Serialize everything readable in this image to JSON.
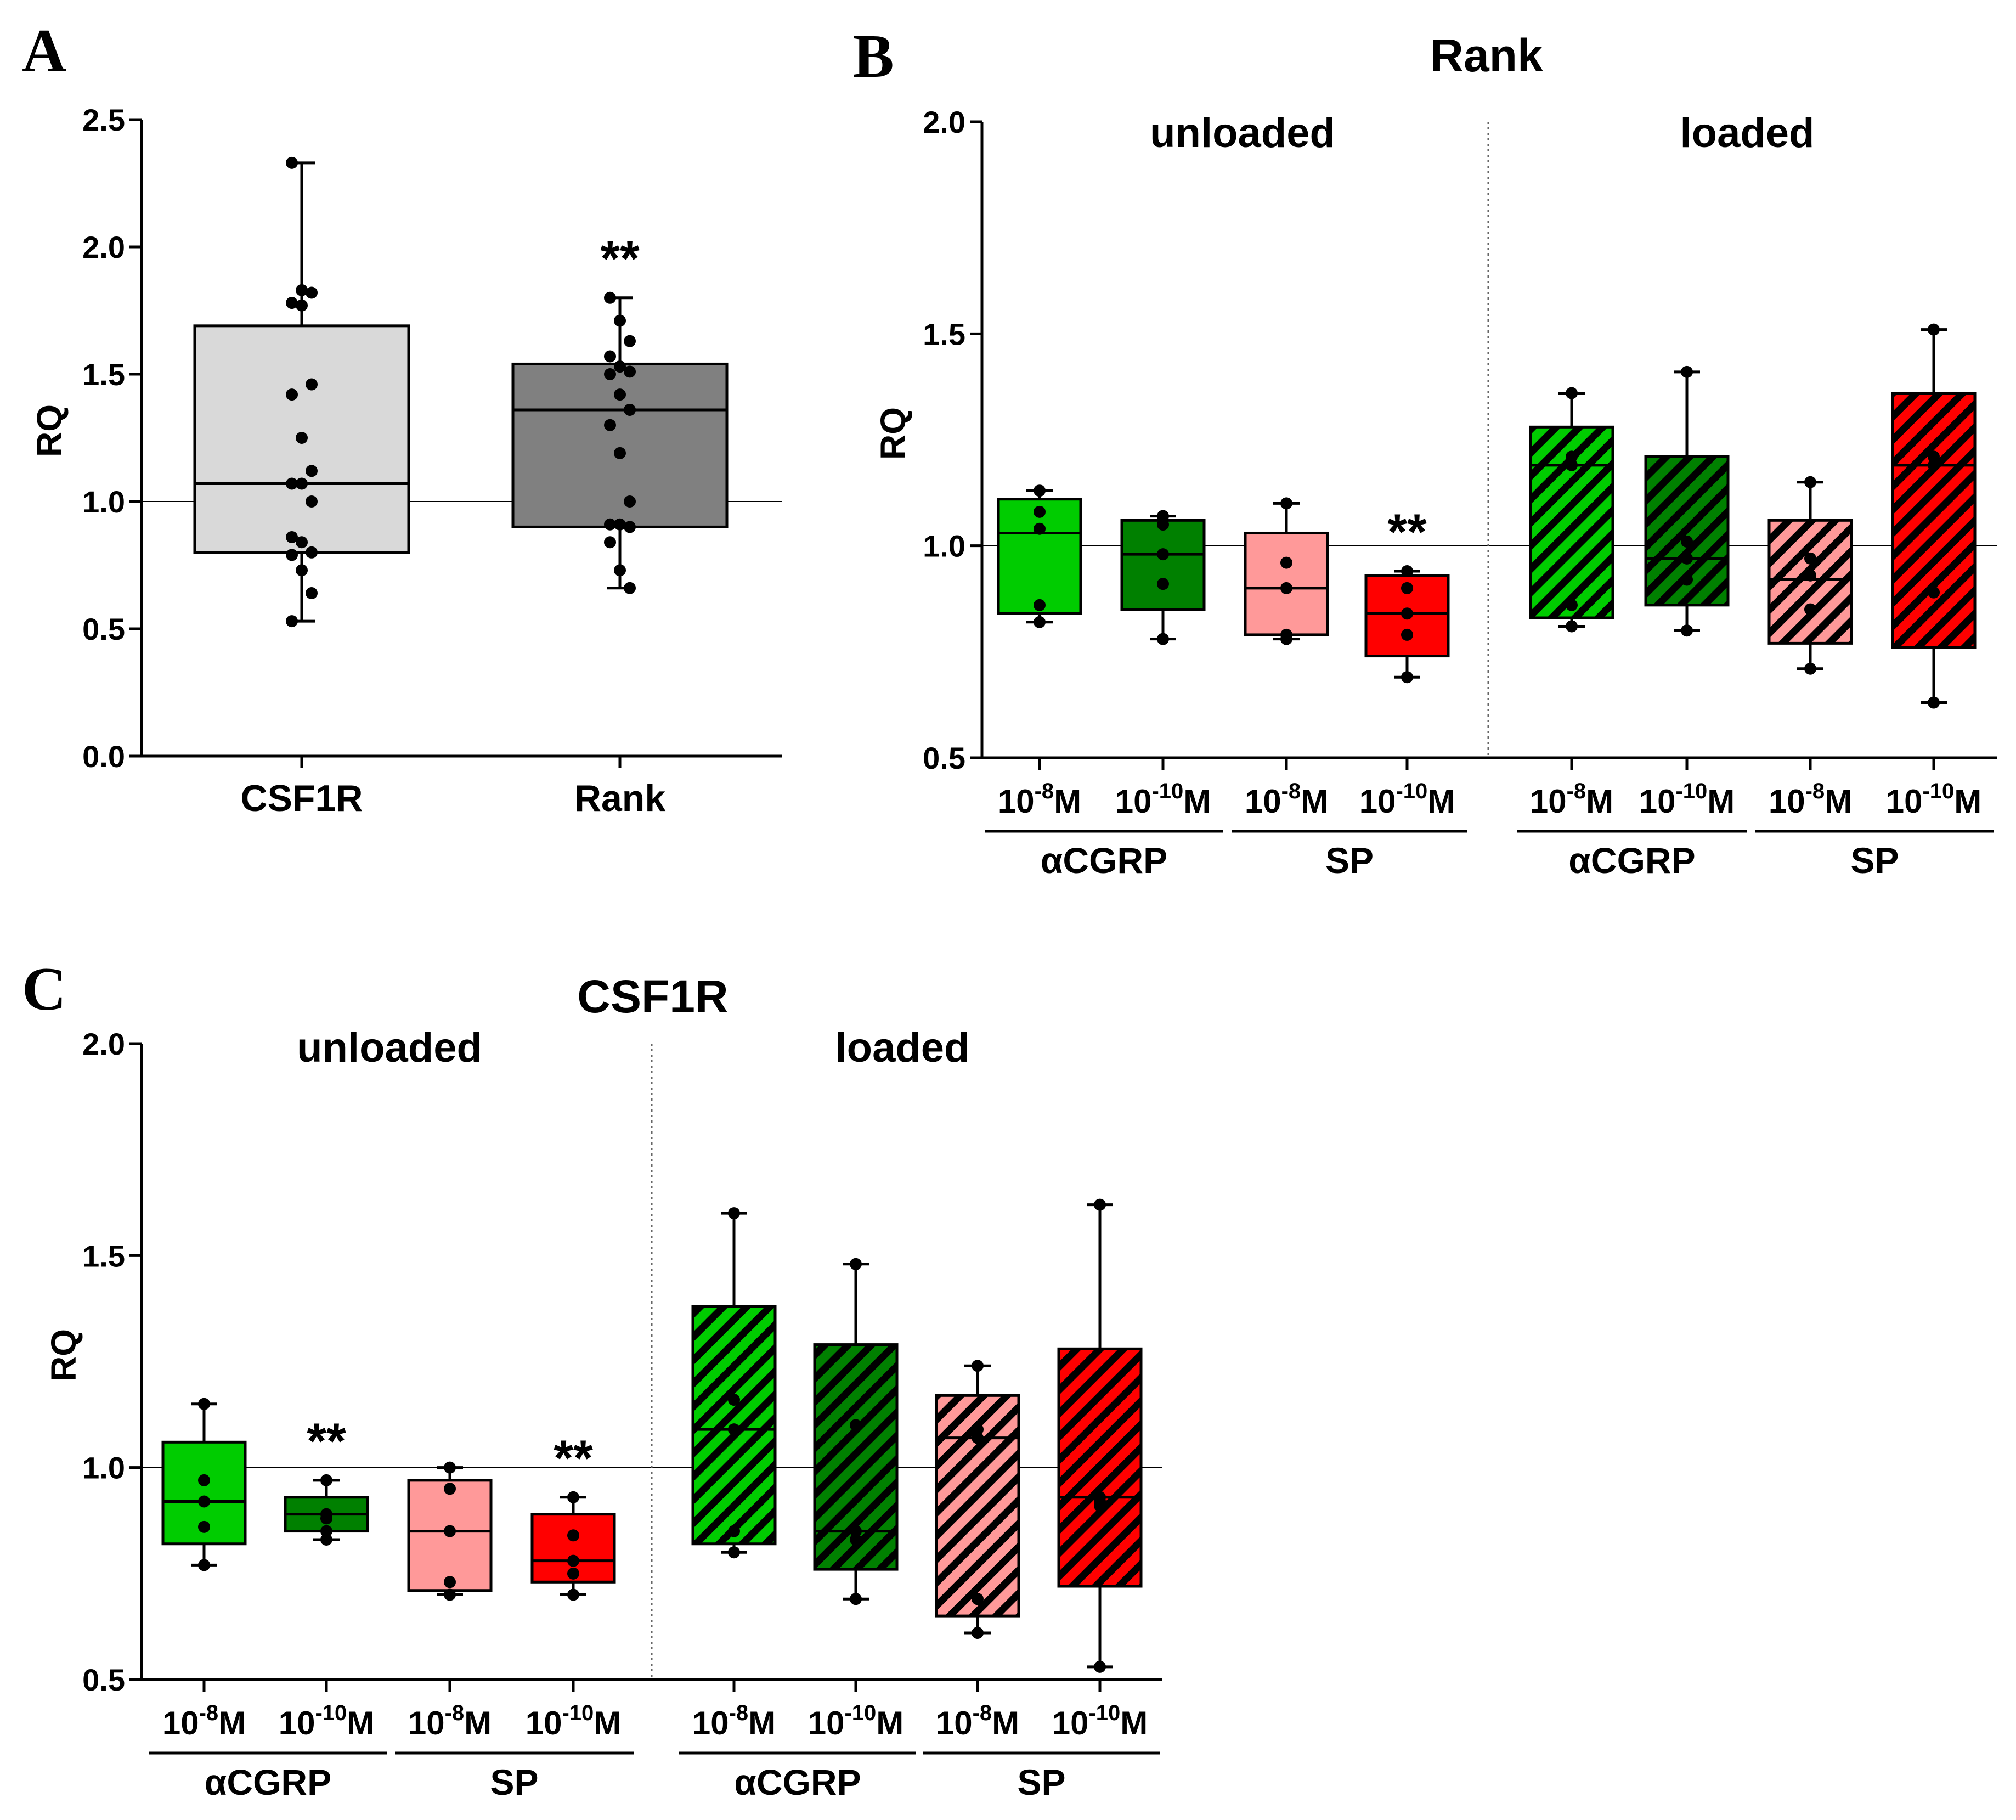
{
  "chart_data": [
    {
      "panel": "A",
      "type": "box",
      "title": "",
      "ylabel": "RQ",
      "ylim": [
        0.0,
        2.5
      ],
      "yticks": [
        "0.0",
        "0.5",
        "1.0",
        "1.5",
        "2.0",
        "2.5"
      ],
      "reference_line": 1.0,
      "categories": [
        "CSF1R",
        "Rank"
      ],
      "boxes": [
        {
          "name": "CSF1R",
          "color": "#d9d9d9",
          "min": 0.53,
          "q1": 0.8,
          "median": 1.07,
          "q3": 1.69,
          "max": 2.33,
          "points": [
            2.33,
            1.83,
            1.82,
            1.78,
            1.77,
            1.46,
            1.42,
            1.25,
            1.12,
            1.07,
            1.07,
            1.0,
            0.86,
            0.84,
            0.8,
            0.79,
            0.73,
            0.64,
            0.53
          ],
          "sig": ""
        },
        {
          "name": "Rank",
          "color": "#808080",
          "min": 0.66,
          "q1": 0.9,
          "median": 1.36,
          "q3": 1.54,
          "max": 1.8,
          "points": [
            1.8,
            1.71,
            1.63,
            1.57,
            1.53,
            1.51,
            1.5,
            1.42,
            1.36,
            1.3,
            1.19,
            1.0,
            0.91,
            0.91,
            0.9,
            0.84,
            0.73,
            0.66
          ],
          "sig": "**"
        }
      ]
    },
    {
      "panel": "B",
      "type": "box",
      "title": "Rank",
      "ylabel": "RQ",
      "ylim": [
        0.5,
        2.0
      ],
      "yticks": [
        "0.5",
        "1.0",
        "1.5",
        "2.0"
      ],
      "reference_line": 1.0,
      "conditions": [
        "unloaded",
        "loaded"
      ],
      "concentration_labels": [
        {
          "base": "10",
          "exp": "-8",
          "unit": "M"
        },
        {
          "base": "10",
          "exp": "-10",
          "unit": "M"
        }
      ],
      "groups": [
        "αCGRP",
        "SP",
        "αCGRP",
        "SP"
      ],
      "boxes": [
        {
          "cond": "unloaded",
          "group": "αCGRP",
          "conc": "10-8M",
          "color": "#00cc00",
          "hatched": false,
          "min": 0.82,
          "q1": 0.84,
          "median": 1.03,
          "q3": 1.11,
          "max": 1.13,
          "points": [
            1.13,
            1.08,
            1.04,
            0.86,
            0.82
          ],
          "sig": ""
        },
        {
          "cond": "unloaded",
          "group": "αCGRP",
          "conc": "10-10M",
          "color": "#008000",
          "hatched": false,
          "min": 0.78,
          "q1": 0.85,
          "median": 0.98,
          "q3": 1.06,
          "max": 1.07,
          "points": [
            1.07,
            1.05,
            0.98,
            0.91,
            0.78
          ],
          "sig": ""
        },
        {
          "cond": "unloaded",
          "group": "SP",
          "conc": "10-8M",
          "color": "#ff9999",
          "hatched": false,
          "min": 0.78,
          "q1": 0.79,
          "median": 0.9,
          "q3": 1.03,
          "max": 1.1,
          "points": [
            1.1,
            0.96,
            0.9,
            0.79,
            0.78
          ],
          "sig": ""
        },
        {
          "cond": "unloaded",
          "group": "SP",
          "conc": "10-10M",
          "color": "#ff0000",
          "hatched": false,
          "min": 0.69,
          "q1": 0.74,
          "median": 0.84,
          "q3": 0.93,
          "max": 0.94,
          "points": [
            0.94,
            0.9,
            0.84,
            0.79,
            0.69
          ],
          "sig": "**"
        },
        {
          "cond": "loaded",
          "group": "αCGRP",
          "conc": "10-8M",
          "color": "#00cc00",
          "hatched": true,
          "min": 0.81,
          "q1": 0.83,
          "median": 1.19,
          "q3": 1.28,
          "max": 1.36,
          "points": [
            1.36,
            1.21,
            1.19,
            0.86,
            0.81
          ],
          "sig": ""
        },
        {
          "cond": "loaded",
          "group": "αCGRP",
          "conc": "10-10M",
          "color": "#008000",
          "hatched": true,
          "min": 0.8,
          "q1": 0.86,
          "median": 0.97,
          "q3": 1.21,
          "max": 1.41,
          "points": [
            1.41,
            1.01,
            0.97,
            0.92,
            0.8
          ],
          "sig": ""
        },
        {
          "cond": "loaded",
          "group": "SP",
          "conc": "10-8M",
          "color": "#ff9999",
          "hatched": true,
          "min": 0.71,
          "q1": 0.77,
          "median": 0.92,
          "q3": 1.06,
          "max": 1.15,
          "points": [
            1.15,
            0.97,
            0.93,
            0.85,
            0.71
          ],
          "sig": ""
        },
        {
          "cond": "loaded",
          "group": "SP",
          "conc": "10-10M",
          "color": "#ff0000",
          "hatched": true,
          "min": 0.63,
          "q1": 0.76,
          "median": 1.19,
          "q3": 1.36,
          "max": 1.51,
          "points": [
            1.51,
            1.21,
            1.19,
            0.89,
            0.63
          ],
          "sig": ""
        }
      ]
    },
    {
      "panel": "C",
      "type": "box",
      "title": "CSF1R",
      "ylabel": "RQ",
      "ylim": [
        0.5,
        2.0
      ],
      "yticks": [
        "0.5",
        "1.0",
        "1.5",
        "2.0"
      ],
      "reference_line": 1.0,
      "conditions": [
        "unloaded",
        "loaded"
      ],
      "concentration_labels": [
        {
          "base": "10",
          "exp": "-8",
          "unit": "M"
        },
        {
          "base": "10",
          "exp": "-10",
          "unit": "M"
        }
      ],
      "groups": [
        "αCGRP",
        "SP",
        "αCGRP",
        "SP"
      ],
      "boxes": [
        {
          "cond": "unloaded",
          "group": "αCGRP",
          "conc": "10-8M",
          "color": "#00cc00",
          "hatched": false,
          "min": 0.77,
          "q1": 0.82,
          "median": 0.92,
          "q3": 1.06,
          "max": 1.15,
          "points": [
            1.15,
            0.97,
            0.92,
            0.86,
            0.77
          ],
          "sig": ""
        },
        {
          "cond": "unloaded",
          "group": "αCGRP",
          "conc": "10-10M",
          "color": "#008000",
          "hatched": false,
          "min": 0.83,
          "q1": 0.85,
          "median": 0.89,
          "q3": 0.93,
          "max": 0.97,
          "points": [
            0.97,
            0.89,
            0.88,
            0.85,
            0.83
          ],
          "sig": "**"
        },
        {
          "cond": "unloaded",
          "group": "SP",
          "conc": "10-8M",
          "color": "#ff9999",
          "hatched": false,
          "min": 0.7,
          "q1": 0.71,
          "median": 0.85,
          "q3": 0.97,
          "max": 1.0,
          "points": [
            1.0,
            0.95,
            0.85,
            0.73,
            0.7
          ],
          "sig": ""
        },
        {
          "cond": "unloaded",
          "group": "SP",
          "conc": "10-10M",
          "color": "#ff0000",
          "hatched": false,
          "min": 0.7,
          "q1": 0.73,
          "median": 0.78,
          "q3": 0.89,
          "max": 0.93,
          "points": [
            0.93,
            0.84,
            0.78,
            0.75,
            0.7
          ],
          "sig": "**"
        },
        {
          "cond": "loaded",
          "group": "αCGRP",
          "conc": "10-8M",
          "color": "#00cc00",
          "hatched": true,
          "min": 0.8,
          "q1": 0.82,
          "median": 1.09,
          "q3": 1.38,
          "max": 1.6,
          "points": [
            1.6,
            1.16,
            1.09,
            0.85,
            0.8
          ],
          "sig": ""
        },
        {
          "cond": "loaded",
          "group": "αCGRP",
          "conc": "10-10M",
          "color": "#008000",
          "hatched": true,
          "min": 0.69,
          "q1": 0.76,
          "median": 0.85,
          "q3": 1.29,
          "max": 1.48,
          "points": [
            1.48,
            1.1,
            0.85,
            0.83,
            0.69
          ],
          "sig": ""
        },
        {
          "cond": "loaded",
          "group": "SP",
          "conc": "10-8M",
          "color": "#ff9999",
          "hatched": true,
          "min": 0.61,
          "q1": 0.65,
          "median": 1.07,
          "q3": 1.17,
          "max": 1.24,
          "points": [
            1.24,
            1.09,
            1.07,
            0.69,
            0.61
          ],
          "sig": ""
        },
        {
          "cond": "loaded",
          "group": "SP",
          "conc": "10-10M",
          "color": "#ff0000",
          "hatched": true,
          "min": 0.53,
          "q1": 0.72,
          "median": 0.93,
          "q3": 1.28,
          "max": 1.62,
          "points": [
            1.62,
            0.93,
            0.92,
            0.91,
            0.53
          ],
          "sig": ""
        }
      ]
    }
  ],
  "panel_labels": [
    "A",
    "B",
    "C"
  ]
}
